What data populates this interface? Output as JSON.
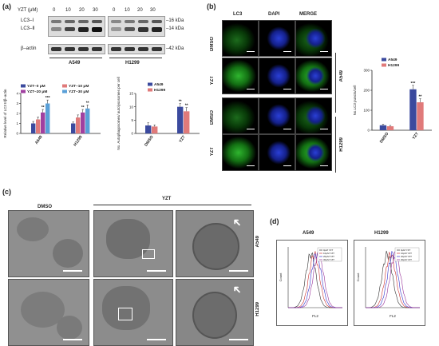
{
  "panel_a": {
    "label": "(a)",
    "treatment_label": "YZT (μM)",
    "doses": [
      "0",
      "10",
      "20",
      "30"
    ],
    "lc3_i": "LC3–Ⅰ",
    "lc3_ii": "LC3–Ⅱ",
    "beta_actin": "β–actin",
    "kda_16": "–16 kDa",
    "kda_14": "–14 kDa",
    "kda_42": "–42 kDa",
    "cell_a549": "A549",
    "cell_h1299": "H1299"
  },
  "panel_b": {
    "label": "(b)",
    "col_lc3": "LC3",
    "col_dapi": "DAPI",
    "col_merge": "MERGE",
    "rows": [
      "DMSO",
      "YZT",
      "DMSO",
      "YZT"
    ],
    "group_a549": "A549",
    "group_h1299": "H1299"
  },
  "panel_c": {
    "label": "(c)",
    "dmso": "DMSO",
    "yzt": "YZT",
    "row_a549": "A549",
    "row_h1299": "H1299"
  },
  "panel_d": {
    "label": "(d)",
    "title_a549": "A549",
    "title_h1299": "H1299",
    "xlabel": "FL2",
    "ylabel": "Count",
    "legend": [
      "0μM YZT",
      "10μM YZT",
      "20μM YZT",
      "30μM YZT"
    ],
    "colors": [
      "#333333",
      "#cc3333",
      "#3333cc",
      "#993399"
    ]
  },
  "chart_data": [
    {
      "type": "bar",
      "categories": [
        "A549",
        "H1299"
      ],
      "series": [
        {
          "name": "YZT–0 μM",
          "values": [
            1.0,
            1.0
          ],
          "errors": [
            0.2,
            0.15
          ],
          "sig": [
            "",
            ""
          ],
          "color": "#3b4a9e"
        },
        {
          "name": "YZT–10 μM",
          "values": [
            1.4,
            1.6
          ],
          "errors": [
            0.25,
            0.25
          ],
          "sig": [
            "",
            ""
          ],
          "color": "#e07a7a"
        },
        {
          "name": "YZT–20 μM",
          "values": [
            2.1,
            2.1
          ],
          "errors": [
            0.3,
            0.3
          ],
          "sig": [
            "**",
            "**"
          ],
          "color": "#a040a0"
        },
        {
          "name": "YZT–30 μM",
          "values": [
            3.0,
            2.5
          ],
          "errors": [
            0.35,
            0.35
          ],
          "sig": [
            "***",
            "**"
          ],
          "color": "#5aa0d8"
        }
      ],
      "ylabel": "Relative level of LC3 II/β–actin",
      "ylim": [
        0,
        4
      ],
      "yticks": [
        0,
        1,
        2,
        3,
        4
      ]
    },
    {
      "type": "bar",
      "categories": [
        "DMSO",
        "YZT"
      ],
      "series": [
        {
          "name": "A549",
          "values": [
            3.0,
            10.0
          ],
          "errors": [
            1.0,
            1.2
          ],
          "sig": [
            "",
            "**"
          ],
          "color": "#3b4a9e"
        },
        {
          "name": "H1299",
          "values": [
            2.6,
            8.3
          ],
          "errors": [
            0.6,
            1.4
          ],
          "sig": [
            "",
            "**"
          ],
          "color": "#e07a7a"
        }
      ],
      "ylabel": "No. Autophagosomes/ autolysosomes per cell",
      "ylim": [
        0,
        15
      ],
      "yticks": [
        0,
        5,
        10,
        15
      ]
    },
    {
      "type": "bar",
      "categories": [
        "DMSO",
        "YZT"
      ],
      "series": [
        {
          "name": "A549",
          "values": [
            25,
            205
          ],
          "errors": [
            5,
            20
          ],
          "sig": [
            "",
            "***"
          ],
          "color": "#3b4a9e"
        },
        {
          "name": "H1299",
          "values": [
            20,
            140
          ],
          "errors": [
            4,
            18
          ],
          "sig": [
            "",
            "**"
          ],
          "color": "#e07a7a"
        }
      ],
      "ylabel": "No.LC3 puncts/cell",
      "ylim": [
        0,
        300
      ],
      "yticks": [
        0,
        100,
        200,
        300
      ]
    }
  ]
}
